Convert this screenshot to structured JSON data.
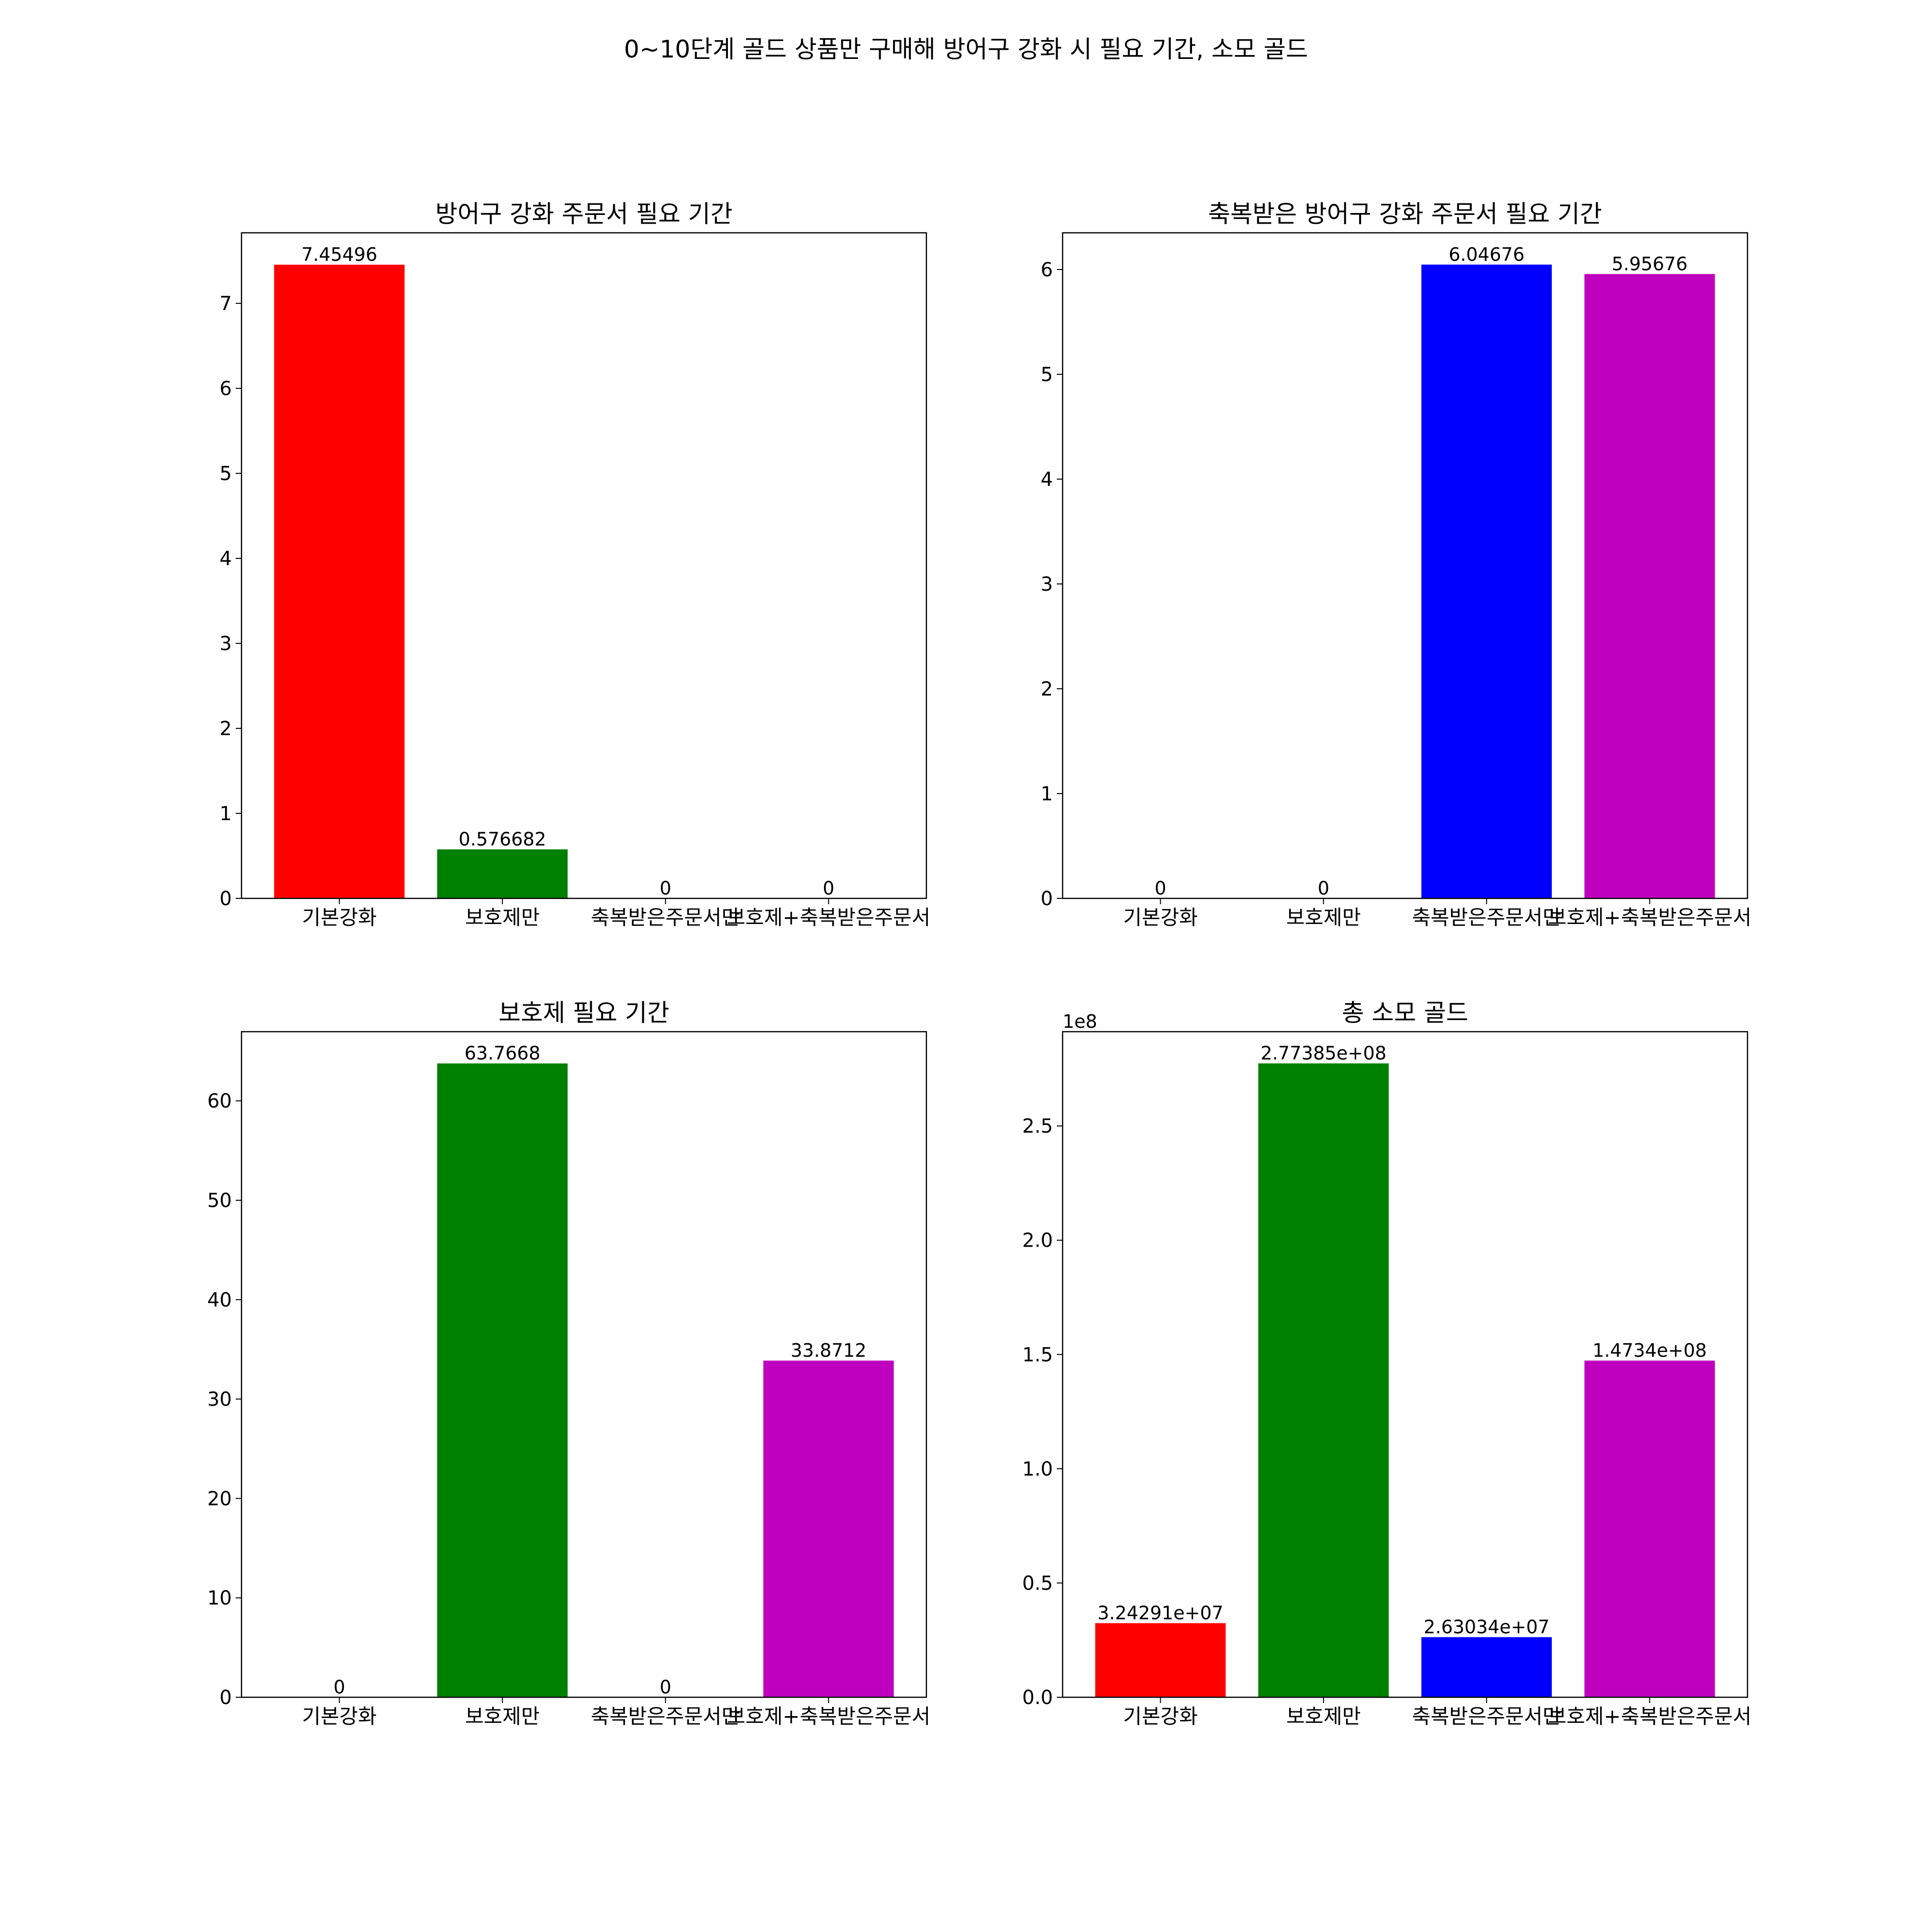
{
  "suptitle": "0~10단계 골드 상품만 구매해 방어구 강화 시 필요 기간, 소모 골드",
  "colors": {
    "red": "#ff0000",
    "green": "#008000",
    "blue": "#0000ff",
    "magenta": "#bf00bf"
  },
  "chart_data": [
    {
      "type": "bar",
      "title": "방어구 강화 주문서 필요 기간",
      "categories": [
        "기본강화",
        "보호제만",
        "축복받은주문서만",
        "보호제+축복받은주문서"
      ],
      "values": [
        7.45496,
        0.576682,
        0,
        0
      ],
      "bar_labels": [
        "7.45496",
        "0.576682",
        "0",
        "0"
      ],
      "colors": [
        "#ff0000",
        "#008000",
        "#0000ff",
        "#bf00bf"
      ],
      "ylim": [
        0,
        7.83
      ],
      "yticks": [
        0,
        1,
        2,
        3,
        4,
        5,
        6,
        7
      ],
      "ytick_labels": [
        "0",
        "1",
        "2",
        "3",
        "4",
        "5",
        "6",
        "7"
      ],
      "offset_label": ""
    },
    {
      "type": "bar",
      "title": "축복받은 방어구 강화 주문서 필요 기간",
      "categories": [
        "기본강화",
        "보호제만",
        "축복받은주문서만",
        "보호제+축복받은주문서"
      ],
      "values": [
        0,
        0,
        6.04676,
        5.95676
      ],
      "bar_labels": [
        "0",
        "0",
        "6.04676",
        "5.95676"
      ],
      "colors": [
        "#ff0000",
        "#008000",
        "#0000ff",
        "#bf00bf"
      ],
      "ylim": [
        0,
        6.35
      ],
      "yticks": [
        0,
        1,
        2,
        3,
        4,
        5,
        6
      ],
      "ytick_labels": [
        "0",
        "1",
        "2",
        "3",
        "4",
        "5",
        "6"
      ],
      "offset_label": ""
    },
    {
      "type": "bar",
      "title": "보호제 필요 기간",
      "categories": [
        "기본강화",
        "보호제만",
        "축복받은주문서만",
        "보호제+축복받은주문서"
      ],
      "values": [
        0,
        63.7668,
        0,
        33.8712
      ],
      "bar_labels": [
        "0",
        "63.7668",
        "0",
        "33.8712"
      ],
      "colors": [
        "#ff0000",
        "#008000",
        "#0000ff",
        "#bf00bf"
      ],
      "ylim": [
        0,
        66.96
      ],
      "yticks": [
        0,
        10,
        20,
        30,
        40,
        50,
        60
      ],
      "ytick_labels": [
        "0",
        "10",
        "20",
        "30",
        "40",
        "50",
        "60"
      ],
      "offset_label": ""
    },
    {
      "type": "bar",
      "title": "총 소모 골드",
      "categories": [
        "기본강화",
        "보호제만",
        "축복받은주문서만",
        "보호제+축복받은주문서"
      ],
      "values": [
        32429100,
        277385000,
        26303400,
        147340000
      ],
      "bar_labels": [
        "3.24291e+07",
        "2.77385e+08",
        "2.63034e+07",
        "1.4734e+08"
      ],
      "colors": [
        "#ff0000",
        "#008000",
        "#0000ff",
        "#bf00bf"
      ],
      "ylim": [
        0,
        291254250
      ],
      "yticks": [
        0,
        50000000,
        100000000,
        150000000,
        200000000,
        250000000
      ],
      "ytick_labels": [
        "0.0",
        "0.5",
        "1.0",
        "1.5",
        "2.0",
        "2.5"
      ],
      "offset_label": "1e8"
    }
  ]
}
